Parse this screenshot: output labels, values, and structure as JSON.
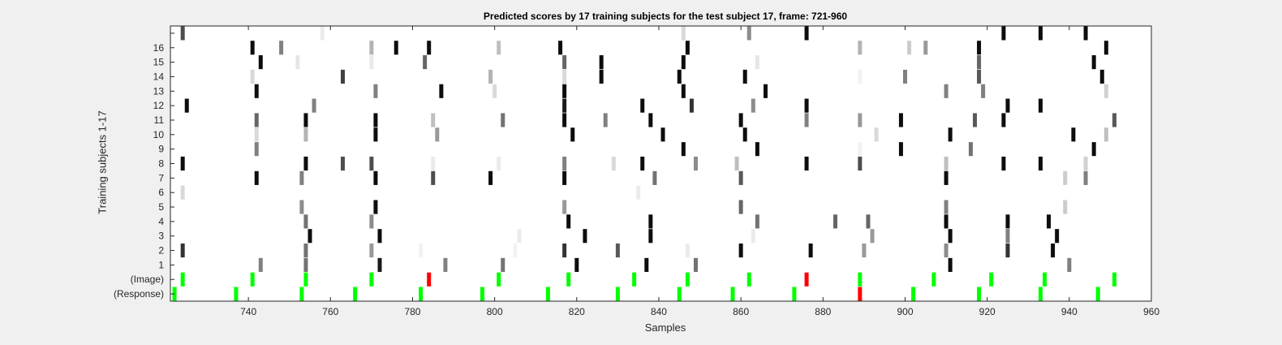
{
  "chart_data": {
    "type": "heatmap",
    "title": "Predicted scores by 17 training subjects for the test subject 17, frame: 721-960",
    "xlabel": "Samples",
    "ylabel": "Training subjects 1-17",
    "xlim": [
      721,
      960
    ],
    "xticks": [
      740,
      760,
      780,
      800,
      820,
      840,
      860,
      880,
      900,
      920,
      940,
      960
    ],
    "row_labels": [
      "(Response)",
      "(Image)",
      "1",
      "2",
      "3",
      "4",
      "5",
      "6",
      "7",
      "8",
      "9",
      "10",
      "11",
      "12",
      "13",
      "14",
      "15",
      "16",
      ""
    ],
    "colors": {
      "correct": "#00ff00",
      "error": "#ff0000",
      "background": "#ffffff"
    },
    "marks_response": [
      [
        722,
        "correct"
      ],
      [
        737,
        "correct"
      ],
      [
        753,
        "correct"
      ],
      [
        766,
        "correct"
      ],
      [
        782,
        "correct"
      ],
      [
        797,
        "correct"
      ],
      [
        813,
        "correct"
      ],
      [
        830,
        "correct"
      ],
      [
        845,
        "correct"
      ],
      [
        858,
        "correct"
      ],
      [
        873,
        "correct"
      ],
      [
        889,
        "error"
      ],
      [
        902,
        "correct"
      ],
      [
        918,
        "correct"
      ],
      [
        933,
        "correct"
      ],
      [
        947,
        "correct"
      ]
    ],
    "marks_image": [
      [
        724,
        "correct"
      ],
      [
        741,
        "correct"
      ],
      [
        754,
        "correct"
      ],
      [
        770,
        "correct"
      ],
      [
        784,
        "error"
      ],
      [
        801,
        "correct"
      ],
      [
        818,
        "correct"
      ],
      [
        834,
        "correct"
      ],
      [
        847,
        "correct"
      ],
      [
        862,
        "correct"
      ],
      [
        876,
        "error"
      ],
      [
        889,
        "correct"
      ],
      [
        907,
        "correct"
      ],
      [
        921,
        "correct"
      ],
      [
        934,
        "correct"
      ],
      [
        951,
        "correct"
      ]
    ],
    "subjects": [
      [
        [
          743,
          0.5
        ],
        [
          754,
          0.45
        ],
        [
          772,
          0.1
        ],
        [
          788,
          0.5
        ],
        [
          802,
          0.45
        ],
        [
          820,
          0.05
        ],
        [
          837,
          0.05
        ],
        [
          849,
          0.45
        ],
        [
          911,
          0.05
        ],
        [
          940,
          0.5
        ]
      ],
      [
        [
          724,
          0.2
        ],
        [
          754,
          0.45
        ],
        [
          770,
          0.6
        ],
        [
          782,
          0.95
        ],
        [
          805,
          0.95
        ],
        [
          817,
          0.2
        ],
        [
          830,
          0.35
        ],
        [
          847,
          0.92
        ],
        [
          860,
          0.05
        ],
        [
          877,
          0.05
        ],
        [
          890,
          0.6
        ],
        [
          910,
          0.55
        ],
        [
          925,
          0.2
        ],
        [
          936,
          0.05
        ]
      ],
      [
        [
          755,
          0.05
        ],
        [
          772,
          0.05
        ],
        [
          806,
          0.92
        ],
        [
          822,
          0.05
        ],
        [
          838,
          0.05
        ],
        [
          863,
          0.92
        ],
        [
          892,
          0.6
        ],
        [
          911,
          0.05
        ],
        [
          925,
          0.5
        ],
        [
          937,
          0.05
        ]
      ],
      [
        [
          754,
          0.45
        ],
        [
          770,
          0.55
        ],
        [
          818,
          0.05
        ],
        [
          838,
          0.05
        ],
        [
          864,
          0.45
        ],
        [
          883,
          0.4
        ],
        [
          891,
          0.4
        ],
        [
          910,
          0.05
        ],
        [
          925,
          0.05
        ],
        [
          935,
          0.05
        ]
      ],
      [
        [
          753,
          0.55
        ],
        [
          771,
          0.05
        ],
        [
          817,
          0.6
        ],
        [
          860,
          0.4
        ],
        [
          910,
          0.5
        ],
        [
          939,
          0.8
        ]
      ],
      [
        [
          724,
          0.85
        ],
        [
          835,
          0.92
        ]
      ],
      [
        [
          742,
          0.05
        ],
        [
          753,
          0.5
        ],
        [
          771,
          0.05
        ],
        [
          785,
          0.3
        ],
        [
          799,
          0.05
        ],
        [
          817,
          0.05
        ],
        [
          839,
          0.45
        ],
        [
          860,
          0.35
        ],
        [
          910,
          0.05
        ],
        [
          939,
          0.8
        ],
        [
          944,
          0.5
        ]
      ],
      [
        [
          724,
          0.05
        ],
        [
          754,
          0.05
        ],
        [
          763,
          0.3
        ],
        [
          770,
          0.3
        ],
        [
          785,
          0.92
        ],
        [
          801,
          0.92
        ],
        [
          817,
          0.5
        ],
        [
          829,
          0.85
        ],
        [
          836,
          0.05
        ],
        [
          849,
          0.55
        ],
        [
          859,
          0.75
        ],
        [
          876,
          0.05
        ],
        [
          889,
          0.3
        ],
        [
          910,
          0.75
        ],
        [
          924,
          0.05
        ],
        [
          933,
          0.05
        ],
        [
          944,
          0.82
        ]
      ],
      [
        [
          742,
          0.5
        ],
        [
          846,
          0.05
        ],
        [
          864,
          0.05
        ],
        [
          889,
          0.95
        ],
        [
          899,
          0.05
        ],
        [
          916,
          0.45
        ],
        [
          946,
          0.05
        ]
      ],
      [
        [
          742,
          0.85
        ],
        [
          754,
          0.7
        ],
        [
          771,
          0.05
        ],
        [
          786,
          0.6
        ],
        [
          819,
          0.05
        ],
        [
          841,
          0.05
        ],
        [
          861,
          0.05
        ],
        [
          893,
          0.85
        ],
        [
          911,
          0.05
        ],
        [
          941,
          0.05
        ],
        [
          949,
          0.75
        ]
      ],
      [
        [
          742,
          0.4
        ],
        [
          754,
          0.05
        ],
        [
          771,
          0.05
        ],
        [
          785,
          0.75
        ],
        [
          802,
          0.45
        ],
        [
          817,
          0.05
        ],
        [
          827,
          0.5
        ],
        [
          838,
          0.05
        ],
        [
          860,
          0.05
        ],
        [
          876,
          0.5
        ],
        [
          889,
          0.6
        ],
        [
          899,
          0.05
        ],
        [
          917,
          0.35
        ],
        [
          924,
          0.05
        ],
        [
          951,
          0.35
        ]
      ],
      [
        [
          725,
          0.05
        ],
        [
          756,
          0.5
        ],
        [
          817,
          0.1
        ],
        [
          836,
          0.05
        ],
        [
          848,
          0.2
        ],
        [
          863,
          0.55
        ],
        [
          876,
          0.05
        ],
        [
          925,
          0.05
        ],
        [
          933,
          0.05
        ]
      ],
      [
        [
          742,
          0.05
        ],
        [
          771,
          0.5
        ],
        [
          787,
          0.05
        ],
        [
          800,
          0.85
        ],
        [
          817,
          0.05
        ],
        [
          846,
          0.05
        ],
        [
          866,
          0.05
        ],
        [
          910,
          0.5
        ],
        [
          919,
          0.5
        ],
        [
          949,
          0.82
        ]
      ],
      [
        [
          741,
          0.85
        ],
        [
          763,
          0.25
        ],
        [
          799,
          0.7
        ],
        [
          817,
          0.85
        ],
        [
          826,
          0.05
        ],
        [
          845,
          0.05
        ],
        [
          861,
          0.05
        ],
        [
          889,
          0.95
        ],
        [
          900,
          0.5
        ],
        [
          918,
          0.35
        ],
        [
          948,
          0.05
        ]
      ],
      [
        [
          743,
          0.05
        ],
        [
          752,
          0.9
        ],
        [
          770,
          0.92
        ],
        [
          783,
          0.4
        ],
        [
          817,
          0.4
        ],
        [
          826,
          0.05
        ],
        [
          846,
          0.05
        ],
        [
          864,
          0.9
        ],
        [
          918,
          0.4
        ],
        [
          946,
          0.05
        ]
      ],
      [
        [
          741,
          0.05
        ],
        [
          748,
          0.5
        ],
        [
          770,
          0.7
        ],
        [
          776,
          0.05
        ],
        [
          784,
          0.05
        ],
        [
          801,
          0.75
        ],
        [
          816,
          0.05
        ],
        [
          847,
          0.05
        ],
        [
          889,
          0.7
        ],
        [
          901,
          0.8
        ],
        [
          905,
          0.6
        ],
        [
          918,
          0.05
        ],
        [
          949,
          0.05
        ]
      ],
      [
        [
          724,
          0.3
        ],
        [
          758,
          0.92
        ],
        [
          846,
          0.85
        ],
        [
          862,
          0.55
        ],
        [
          876,
          0.05
        ],
        [
          924,
          0.05
        ],
        [
          933,
          0.05
        ],
        [
          944,
          0.05
        ]
      ]
    ]
  }
}
